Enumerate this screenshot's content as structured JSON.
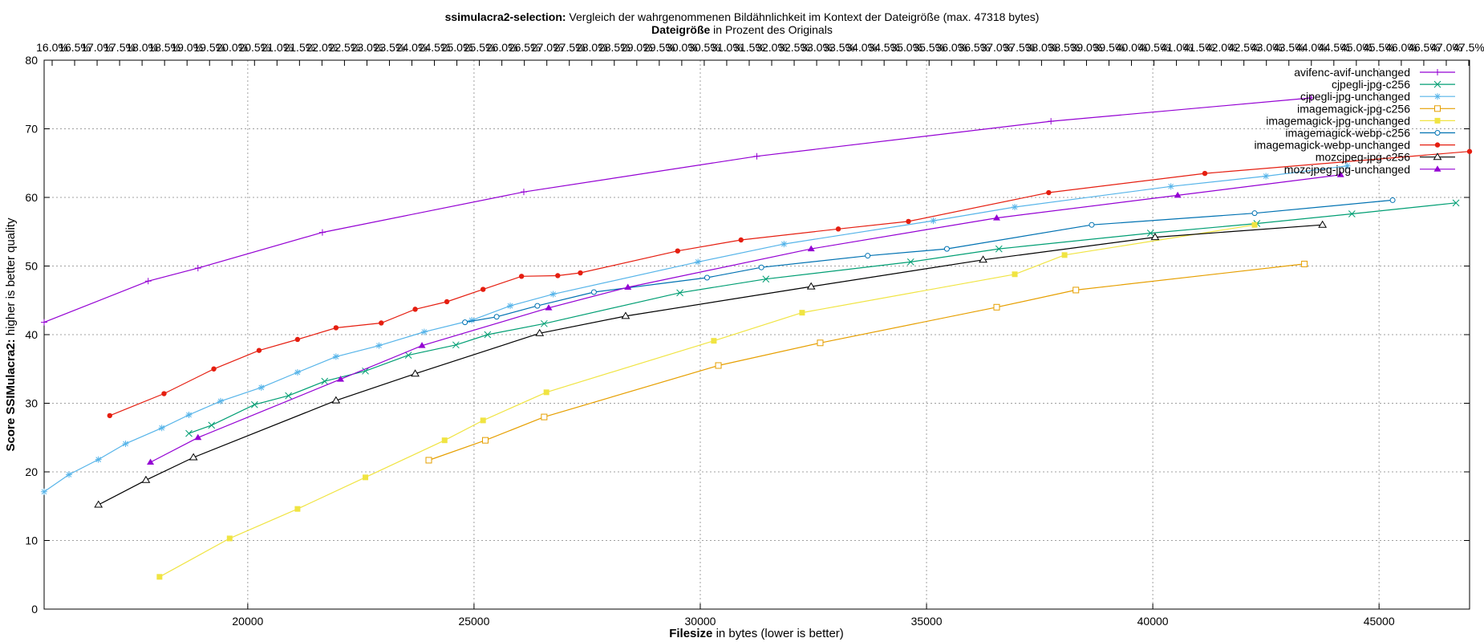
{
  "chart_data": {
    "type": "line",
    "title_bold": "ssimulacra2-selection:",
    "title_rest": " Vergleich der wahrgenommenen Bildähnlichkeit im Kontext der Dateigröße (max. 47318 bytes)",
    "x2label_bold": "Dateigröße",
    "x2label_rest": " in Prozent des Originals",
    "xlabel_bold": "Filesize",
    "xlabel_rest": " in bytes (lower is better)",
    "ylabel_bold": "Score SSIMulacra2:",
    "ylabel_rest": " higher is better quality",
    "xlim": [
      15500,
      47000
    ],
    "ylim": [
      0,
      80
    ],
    "x_ticks": [
      20000,
      25000,
      30000,
      35000,
      40000,
      45000
    ],
    "y_ticks": [
      0,
      10,
      20,
      30,
      40,
      50,
      60,
      70,
      80
    ],
    "x2_ticks": [
      "16.0%",
      "16.5%",
      "17.0%",
      "17.5%",
      "18.0%",
      "18.5%",
      "19.0%",
      "19.5%",
      "20.0%",
      "20.5%",
      "21.0%",
      "21.5%",
      "22.0%",
      "22.5%",
      "23.0%",
      "23.5%",
      "24.0%",
      "24.5%",
      "25.0%",
      "25.5%",
      "26.0%",
      "26.5%",
      "27.0%",
      "27.5%",
      "28.0%",
      "28.5%",
      "29.0%",
      "29.5%",
      "30.0%",
      "30.5%",
      "31.0%",
      "31.5%",
      "32.0%",
      "32.5%",
      "33.0%",
      "33.5%",
      "34.0%",
      "34.5%",
      "35.0%",
      "35.5%",
      "36.0%",
      "36.5%",
      "37.0%",
      "37.5%",
      "38.0%",
      "38.5%",
      "39.0%",
      "39.5%",
      "40.0%",
      "40.5%",
      "41.0%",
      "41.5%",
      "42.0%",
      "42.5%",
      "43.0%",
      "43.5%",
      "44.0%",
      "44.5%",
      "45.0%",
      "45.5%",
      "46.0%",
      "46.5%",
      "47.0%",
      "47.5%"
    ],
    "grid": true,
    "legend_position": "top-right",
    "series": [
      {
        "name": "avifenc-avif-unchanged",
        "color": "#9400d3",
        "marker": "plus",
        "x": [
          15500,
          17800,
          18900,
          21650,
          26100,
          31250,
          37750,
          43500
        ],
        "y": [
          41.8,
          47.8,
          49.7,
          54.9,
          60.8,
          66.0,
          71.1,
          74.5
        ]
      },
      {
        "name": "cjpegli-jpg-c256",
        "color": "#009e73",
        "marker": "cross",
        "x": [
          18700,
          19200,
          20150,
          20900,
          21700,
          22600,
          23550,
          24600,
          25300,
          26550,
          29550,
          31450,
          34650,
          36600,
          39950,
          42300,
          44400,
          46700
        ],
        "y": [
          25.6,
          26.8,
          29.8,
          31.1,
          33.2,
          34.7,
          37.0,
          38.5,
          40.0,
          41.6,
          46.1,
          48.1,
          50.6,
          52.5,
          54.8,
          56.2,
          57.6,
          59.2
        ]
      },
      {
        "name": "cjpegli-jpg-unchanged",
        "color": "#56b4e9",
        "marker": "star",
        "x": [
          15500,
          16050,
          16700,
          17300,
          18100,
          18700,
          19400,
          20300,
          21100,
          21950,
          22900,
          23900,
          24950,
          25800,
          26750,
          29950,
          31850,
          35150,
          36950,
          40400,
          42500,
          44300
        ],
        "y": [
          17.1,
          19.6,
          21.8,
          24.1,
          26.4,
          28.3,
          30.3,
          32.3,
          34.5,
          36.8,
          38.4,
          40.4,
          42.1,
          44.2,
          45.9,
          50.6,
          53.2,
          56.6,
          58.6,
          61.6,
          63.1,
          64.6
        ]
      },
      {
        "name": "imagemagick-jpg-c256",
        "color": "#e69f00",
        "marker": "square",
        "x": [
          24000,
          25250,
          26550,
          30400,
          32650,
          36550,
          38300,
          43350
        ],
        "y": [
          21.7,
          24.6,
          28.0,
          35.5,
          38.8,
          44.0,
          46.5,
          50.3
        ]
      },
      {
        "name": "imagemagick-jpg-unchanged",
        "color": "#f0e442",
        "marker": "filled-square",
        "x": [
          18050,
          19600,
          21100,
          22600,
          24350,
          25200,
          26600,
          30300,
          32250,
          36950,
          38050,
          42250
        ],
        "y": [
          4.7,
          10.3,
          14.6,
          19.2,
          24.6,
          27.5,
          31.6,
          39.1,
          43.2,
          48.8,
          51.6,
          56.0
        ]
      },
      {
        "name": "imagemagick-webp-c256",
        "color": "#0072b2",
        "marker": "circle",
        "x": [
          24800,
          25500,
          26400,
          27650,
          30150,
          31350,
          33700,
          35450,
          38650,
          42250,
          45300
        ],
        "y": [
          41.8,
          42.6,
          44.2,
          46.2,
          48.3,
          49.8,
          51.5,
          52.5,
          56.0,
          57.7,
          59.6
        ]
      },
      {
        "name": "imagemagick-webp-unchanged",
        "color": "#e51e10",
        "marker": "filled-circle",
        "x": [
          16950,
          18150,
          19250,
          20250,
          21100,
          21950,
          22950,
          23700,
          24400,
          25200,
          26050,
          26850,
          27350,
          29500,
          30900,
          33050,
          34600,
          37700,
          41150,
          47000
        ],
        "y": [
          28.2,
          31.4,
          35.0,
          37.7,
          39.3,
          41.0,
          41.7,
          43.7,
          44.8,
          46.6,
          48.5,
          48.6,
          49.0,
          52.2,
          53.8,
          55.4,
          56.5,
          60.7,
          63.5,
          66.7
        ]
      },
      {
        "name": "mozcjpeg-jpg-c256",
        "color": "#000000",
        "marker": "triangle",
        "x": [
          16700,
          17750,
          18800,
          21950,
          23700,
          26450,
          28350,
          32450,
          36250,
          40050,
          43750
        ],
        "y": [
          15.2,
          18.8,
          22.1,
          30.4,
          34.3,
          40.2,
          42.7,
          47.0,
          50.9,
          54.2,
          56.0
        ]
      },
      {
        "name": "mozcjpeg-jpg-unchanged",
        "color": "#9400d3",
        "marker": "filled-triangle",
        "x": [
          17850,
          18900,
          22050,
          23850,
          26650,
          28400,
          32450,
          36550,
          40550,
          44150
        ],
        "y": [
          21.4,
          25.0,
          33.5,
          38.4,
          43.9,
          46.9,
          52.5,
          57.0,
          60.3,
          63.3
        ]
      }
    ]
  }
}
